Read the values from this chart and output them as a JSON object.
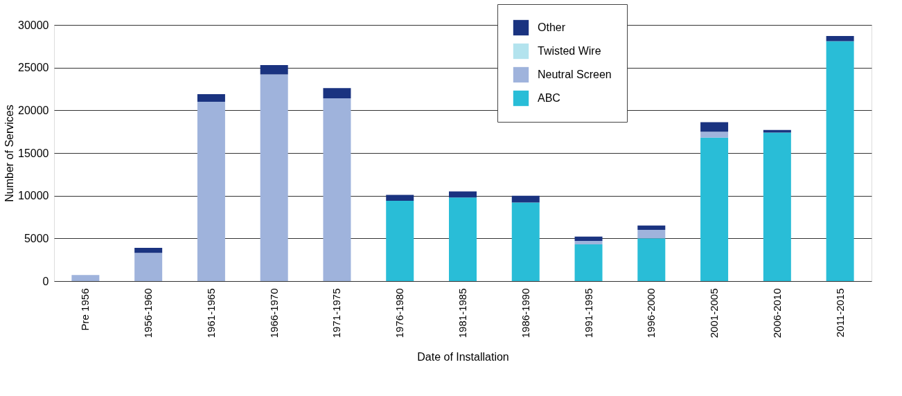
{
  "chart_data": {
    "type": "bar",
    "stacked": true,
    "xlabel": "Date of Installation",
    "ylabel": "Number of Services",
    "categories": [
      "Pre 1956",
      "1956-1960",
      "1961-1965",
      "1966-1970",
      "1971-1975",
      "1976-1980",
      "1981-1985",
      "1986-1990",
      "1991-1995",
      "1996-2000",
      "2001-2005",
      "2006-2010",
      "2011-2015"
    ],
    "series": [
      {
        "name": "ABC",
        "color": "#29bdd7",
        "values": [
          0,
          0,
          0,
          0,
          0,
          9400,
          9800,
          9200,
          4300,
          5000,
          16800,
          17400,
          28100
        ]
      },
      {
        "name": "Neutral Screen",
        "color": "#9fb3dc",
        "values": [
          700,
          3300,
          21000,
          24200,
          21400,
          0,
          0,
          0,
          400,
          1000,
          700,
          0,
          0
        ]
      },
      {
        "name": "Twisted Wire",
        "color": "#b3e3ee",
        "values": [
          0,
          0,
          0,
          0,
          0,
          0,
          0,
          0,
          0,
          0,
          0,
          0,
          0
        ]
      },
      {
        "name": "Other",
        "color": "#1a3380",
        "values": [
          0,
          600,
          900,
          1100,
          1200,
          700,
          700,
          800,
          500,
          500,
          1100,
          300,
          600
        ]
      }
    ],
    "ylim": [
      0,
      30000
    ],
    "yticks": [
      0,
      5000,
      10000,
      15000,
      20000,
      25000,
      30000
    ],
    "grid": "y",
    "legend": "top"
  }
}
